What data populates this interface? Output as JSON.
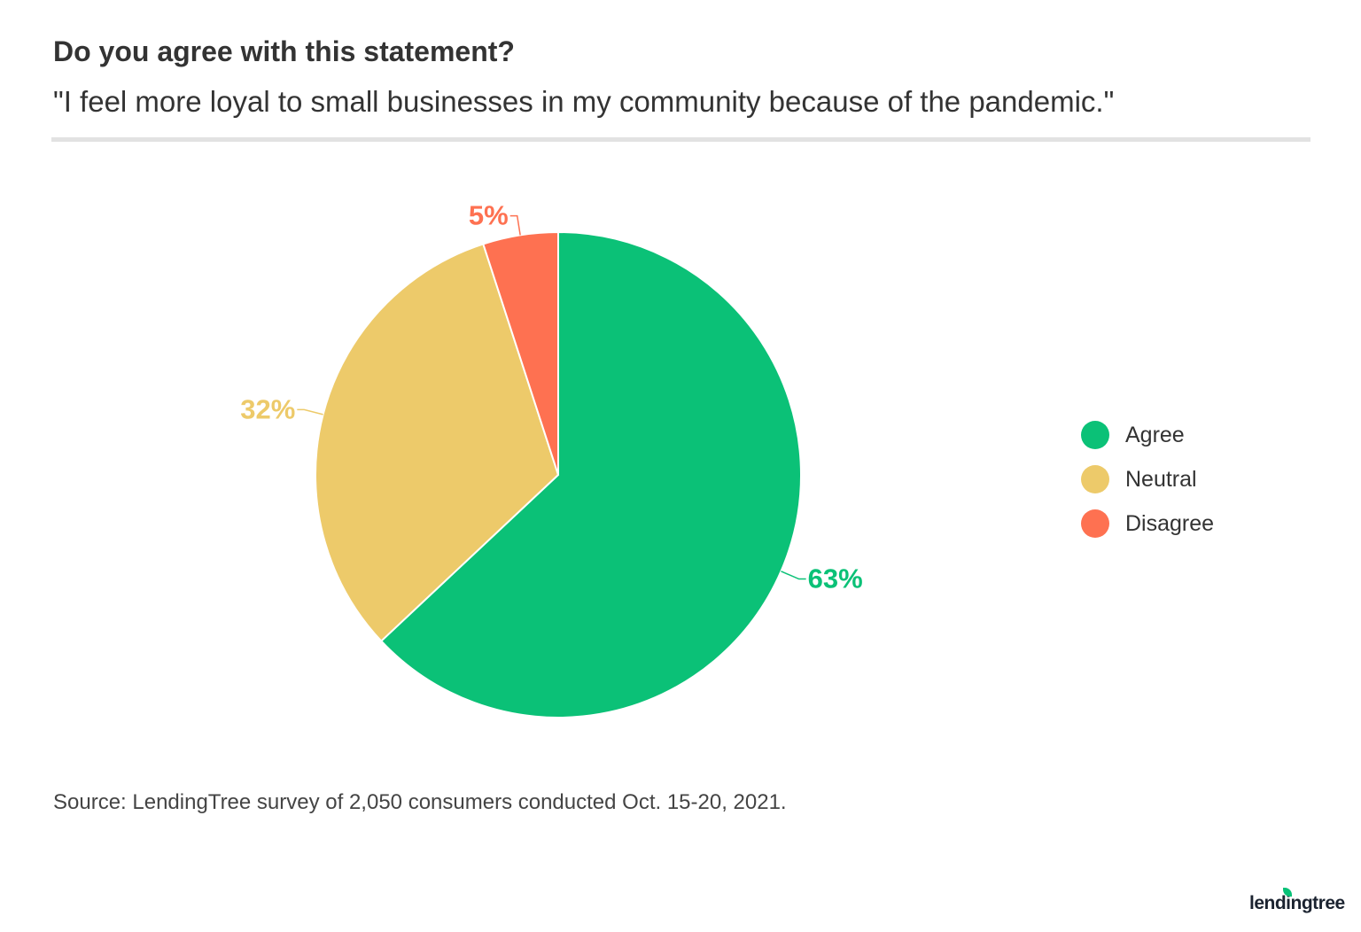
{
  "header": {
    "title": "Do you agree with this statement?",
    "subtitle": "\"I feel more loyal to small businesses in my community because of the pandemic.\""
  },
  "chart_data": {
    "type": "pie",
    "categories": [
      "Agree",
      "Neutral",
      "Disagree"
    ],
    "values": [
      63,
      32,
      5
    ],
    "labels": [
      "63%",
      "32%",
      "5%"
    ],
    "colors": [
      "#0bc177",
      "#edca6a",
      "#fe7151"
    ],
    "start_angle": "top, clockwise",
    "legend_position": "right"
  },
  "legend": {
    "items": [
      {
        "label": "Agree",
        "color": "#0bc177"
      },
      {
        "label": "Neutral",
        "color": "#edca6a"
      },
      {
        "label": "Disagree",
        "color": "#fe7151"
      }
    ]
  },
  "footer": {
    "source": "Source: LendingTree survey of 2,050 consumers conducted Oct. 15-20, 2021.",
    "logo": "lendingtree"
  }
}
